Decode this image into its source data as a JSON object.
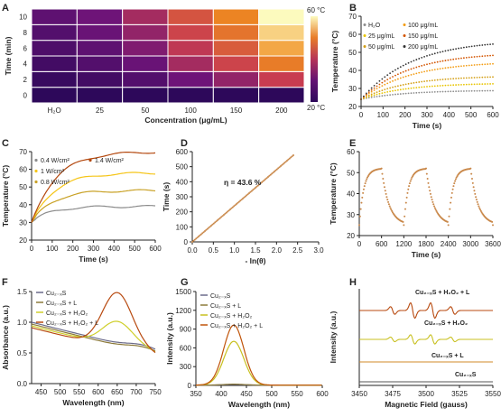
{
  "chart_data": [
    {
      "panel": "A",
      "type": "heatmap",
      "xlabel": "Concentration (μg/mL)",
      "ylabel": "Time (min)",
      "categories": [
        "H₂O",
        "25",
        "50",
        "100",
        "150",
        "200"
      ],
      "y": [
        0,
        2,
        4,
        6,
        8,
        10
      ],
      "colorbar": {
        "min_label": "20 °C",
        "max_label": "60 °C",
        "min": 20,
        "max": 60
      },
      "values": [
        [
          20,
          20,
          20,
          20,
          20,
          20
        ],
        [
          22,
          24,
          27,
          32,
          36,
          42
        ],
        [
          24,
          27,
          31,
          38,
          43,
          50
        ],
        [
          26,
          29,
          34,
          41,
          46,
          54
        ],
        [
          27,
          31,
          36,
          43,
          49,
          57
        ],
        [
          29,
          32,
          38,
          45,
          51,
          60
        ]
      ]
    },
    {
      "panel": "B",
      "type": "scatter",
      "xlabel": "Time (s)",
      "ylabel": "Temperature (°C)",
      "xlim": [
        0,
        600
      ],
      "ylim": [
        20,
        70
      ],
      "xticks": [
        0,
        100,
        200,
        300,
        400,
        500,
        600
      ],
      "yticks": [
        20,
        30,
        40,
        50,
        60,
        70
      ],
      "series": [
        {
          "name": "H₂O",
          "color": "#8c8c8c",
          "start": 24,
          "end": 29,
          "k": 200
        },
        {
          "name": "25 μg/mL",
          "color": "#e8c400",
          "start": 24,
          "end": 33,
          "k": 200
        },
        {
          "name": "50 μg/mL",
          "color": "#d4a017",
          "start": 24,
          "end": 37,
          "k": 200
        },
        {
          "name": "100 μg/mL",
          "color": "#f39c12",
          "start": 24,
          "end": 45,
          "k": 220
        },
        {
          "name": "150 μg/mL",
          "color": "#d35400",
          "start": 24,
          "end": 50,
          "k": 220
        },
        {
          "name": "200 μg/mL",
          "color": "#333333",
          "start": 24,
          "end": 57,
          "k": 230
        }
      ]
    },
    {
      "panel": "C",
      "type": "scatter",
      "xlabel": "Time (s)",
      "ylabel": "Temperature (°C)",
      "xlim": [
        0,
        600
      ],
      "ylim": [
        20,
        70
      ],
      "xticks": [
        0,
        100,
        200,
        300,
        400,
        500,
        600
      ],
      "yticks": [
        20,
        30,
        40,
        50,
        60,
        70
      ],
      "series": [
        {
          "name": "0.4 W/cm²",
          "color": "#8c8c8c",
          "start": 30,
          "end": 39,
          "k": 90
        },
        {
          "name": "0.8 W/cm²",
          "color": "#c9a227",
          "start": 30,
          "end": 48,
          "k": 100
        },
        {
          "name": "1 W/cm²",
          "color": "#f5c518",
          "start": 30,
          "end": 58,
          "k": 110
        },
        {
          "name": "1.4 W/cm²",
          "color": "#b3470d",
          "start": 30,
          "end": 70,
          "k": 120
        }
      ]
    },
    {
      "panel": "D",
      "type": "scatter",
      "xlabel": "- ln(θ)",
      "ylabel": "Time (s)",
      "xlim": [
        0,
        3
      ],
      "ylim": [
        0,
        600
      ],
      "xticks": [
        0,
        0.5,
        1.0,
        1.5,
        2.0,
        2.5,
        3.0
      ],
      "yticks": [
        0,
        100,
        200,
        300,
        400,
        500,
        600
      ],
      "annotation": "η = 43.6 %",
      "x_range": [
        0,
        2.4
      ],
      "slope": 240
    },
    {
      "panel": "E",
      "type": "scatter",
      "xlabel": "Time (s)",
      "ylabel": "Temperature (°C)",
      "xlim": [
        0,
        3600
      ],
      "ylim": [
        20,
        60
      ],
      "xticks": [
        0,
        600,
        1200,
        1800,
        2400,
        3000,
        3600
      ],
      "yticks": [
        20,
        30,
        40,
        50,
        60
      ],
      "low": 25,
      "high": 52,
      "cycle": 1200
    },
    {
      "panel": "F",
      "type": "line",
      "xlabel": "Wavelength (nm)",
      "ylabel": "Absorbance (a.u.)",
      "xlim": [
        425,
        750
      ],
      "ylim": [
        0,
        1.5
      ],
      "xticks": [
        450,
        500,
        550,
        600,
        650,
        700,
        750
      ],
      "yticks": [
        0,
        0.5,
        1.0,
        1.5
      ],
      "series": [
        {
          "name": "Cu₂₋ₓS",
          "color": "#6b6b8a",
          "peak": 0
        },
        {
          "name": "Cu₂₋ₓS + L",
          "color": "#8c7a3a",
          "peak": 0
        },
        {
          "name": "Cu₂₋ₓS + H₂O₂",
          "color": "#cfcf2a",
          "peak": 0.4
        },
        {
          "name": "Cu₂₋ₓS + H₂O₂ + L",
          "color": "#b84a10",
          "peak": 0.9
        }
      ]
    },
    {
      "panel": "G",
      "type": "line",
      "xlabel": "Wavelength (nm)",
      "ylabel": "Intensity (a.u.)",
      "xlim": [
        350,
        600
      ],
      "ylim": [
        0,
        1500
      ],
      "xticks": [
        350,
        400,
        450,
        500,
        550,
        600
      ],
      "yticks": [
        0,
        300,
        600,
        900,
        1200,
        1500
      ],
      "series": [
        {
          "name": "Cu₂₋ₓS",
          "color": "#6b6b8a",
          "peak": 10
        },
        {
          "name": "Cu₂₋ₓS + L",
          "color": "#8c7a3a",
          "peak": 15
        },
        {
          "name": "Cu₂₋ₓS + H₂O₂",
          "color": "#c8c020",
          "peak": 700
        },
        {
          "name": "Cu₂₋ₓS + H₂O₂ + L",
          "color": "#c0540a",
          "peak": 960
        }
      ]
    },
    {
      "panel": "H",
      "type": "line",
      "xlabel": "Magnetic Field (gauss)",
      "ylabel": "Intensity (a.u.)",
      "xlim": [
        3450,
        3550
      ],
      "xticks": [
        3450,
        3475,
        3500,
        3525,
        3550
      ],
      "series": [
        {
          "name": "Cu₂₋ₓS + H₂O₂ + L",
          "color": "#b84a10",
          "amp": 1.0
        },
        {
          "name": "Cu₂₋ₓS + H₂O₂",
          "color": "#c8c020",
          "amp": 0.6
        },
        {
          "name": "Cu₂₋ₓS + L",
          "color": "#d08a2a",
          "amp": 0
        },
        {
          "name": "Cu₂₋ₓS",
          "color": "#555555",
          "amp": 0
        }
      ]
    }
  ],
  "panel_labels": [
    "A",
    "B",
    "C",
    "D",
    "E",
    "F",
    "G",
    "H"
  ],
  "legend_B_labels": [
    "H₂O",
    "100 μg/mL",
    "25 μg/mL",
    "150 μg/mL",
    "50 μg/mL",
    "200 μg/mL"
  ]
}
